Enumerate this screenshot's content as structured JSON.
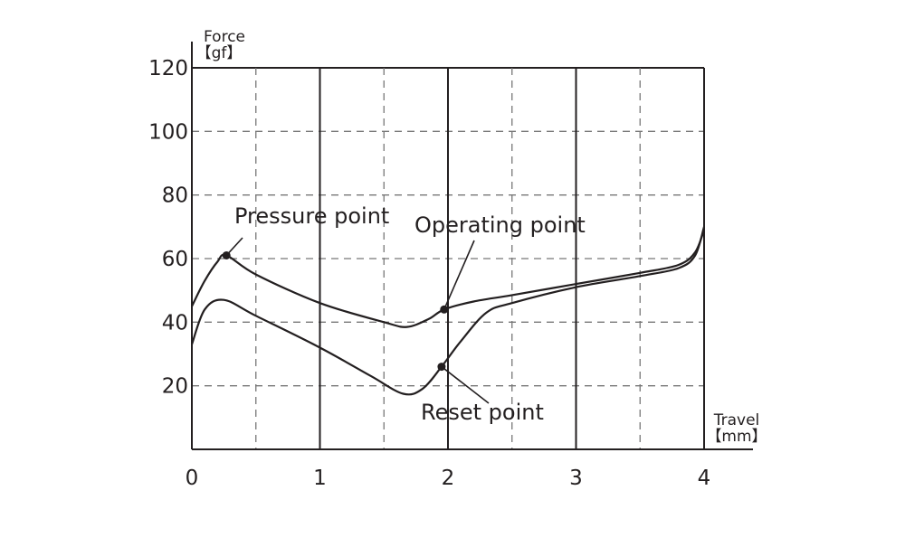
{
  "chart_data": {
    "type": "line",
    "title": "",
    "ylabel": "Force",
    "yunit": "【gf】",
    "xlabel": "Travel",
    "xunit": "【mm】",
    "xlim": [
      0,
      4
    ],
    "ylim": [
      0,
      120
    ],
    "x_ticks": [
      "0",
      "1",
      "2",
      "3",
      "4"
    ],
    "y_ticks": [
      "20",
      "40",
      "60",
      "80",
      "100",
      "120"
    ],
    "major_x": [
      1,
      2,
      3,
      4
    ],
    "minor_x": [
      0.5,
      1.5,
      2.5,
      3.5
    ],
    "grid_y": [
      20,
      40,
      60,
      80,
      100,
      120
    ],
    "grid": true,
    "series": [
      {
        "values": [
          [
            0,
            45
          ],
          [
            0.1,
            53
          ],
          [
            0.2,
            59
          ],
          [
            0.27,
            61
          ],
          [
            0.5,
            55
          ],
          [
            1,
            46
          ],
          [
            1.5,
            40
          ],
          [
            1.68,
            38.5
          ],
          [
            1.85,
            41
          ],
          [
            1.97,
            44
          ],
          [
            2.2,
            46.5
          ],
          [
            2.5,
            48.5
          ],
          [
            3,
            52
          ],
          [
            3.5,
            55.5
          ],
          [
            3.8,
            58
          ],
          [
            3.93,
            62
          ],
          [
            4,
            69
          ]
        ]
      },
      {
        "values": [
          [
            0,
            33
          ],
          [
            0.1,
            44
          ],
          [
            0.25,
            47
          ],
          [
            0.5,
            42
          ],
          [
            1,
            32
          ],
          [
            1.4,
            23
          ],
          [
            1.65,
            17.5
          ],
          [
            1.8,
            19
          ],
          [
            1.95,
            26
          ],
          [
            2.1,
            34
          ],
          [
            2.3,
            43
          ],
          [
            2.5,
            46
          ],
          [
            3,
            51
          ],
          [
            3.5,
            54.5
          ],
          [
            3.8,
            57
          ],
          [
            3.93,
            61
          ],
          [
            4,
            70
          ]
        ]
      }
    ],
    "annotations": [
      {
        "label": "Pressure point",
        "x": 0.27,
        "y": 61
      },
      {
        "label": "Operating point",
        "x": 1.97,
        "y": 44
      },
      {
        "label": "Reset point",
        "x": 1.95,
        "y": 26
      }
    ]
  }
}
